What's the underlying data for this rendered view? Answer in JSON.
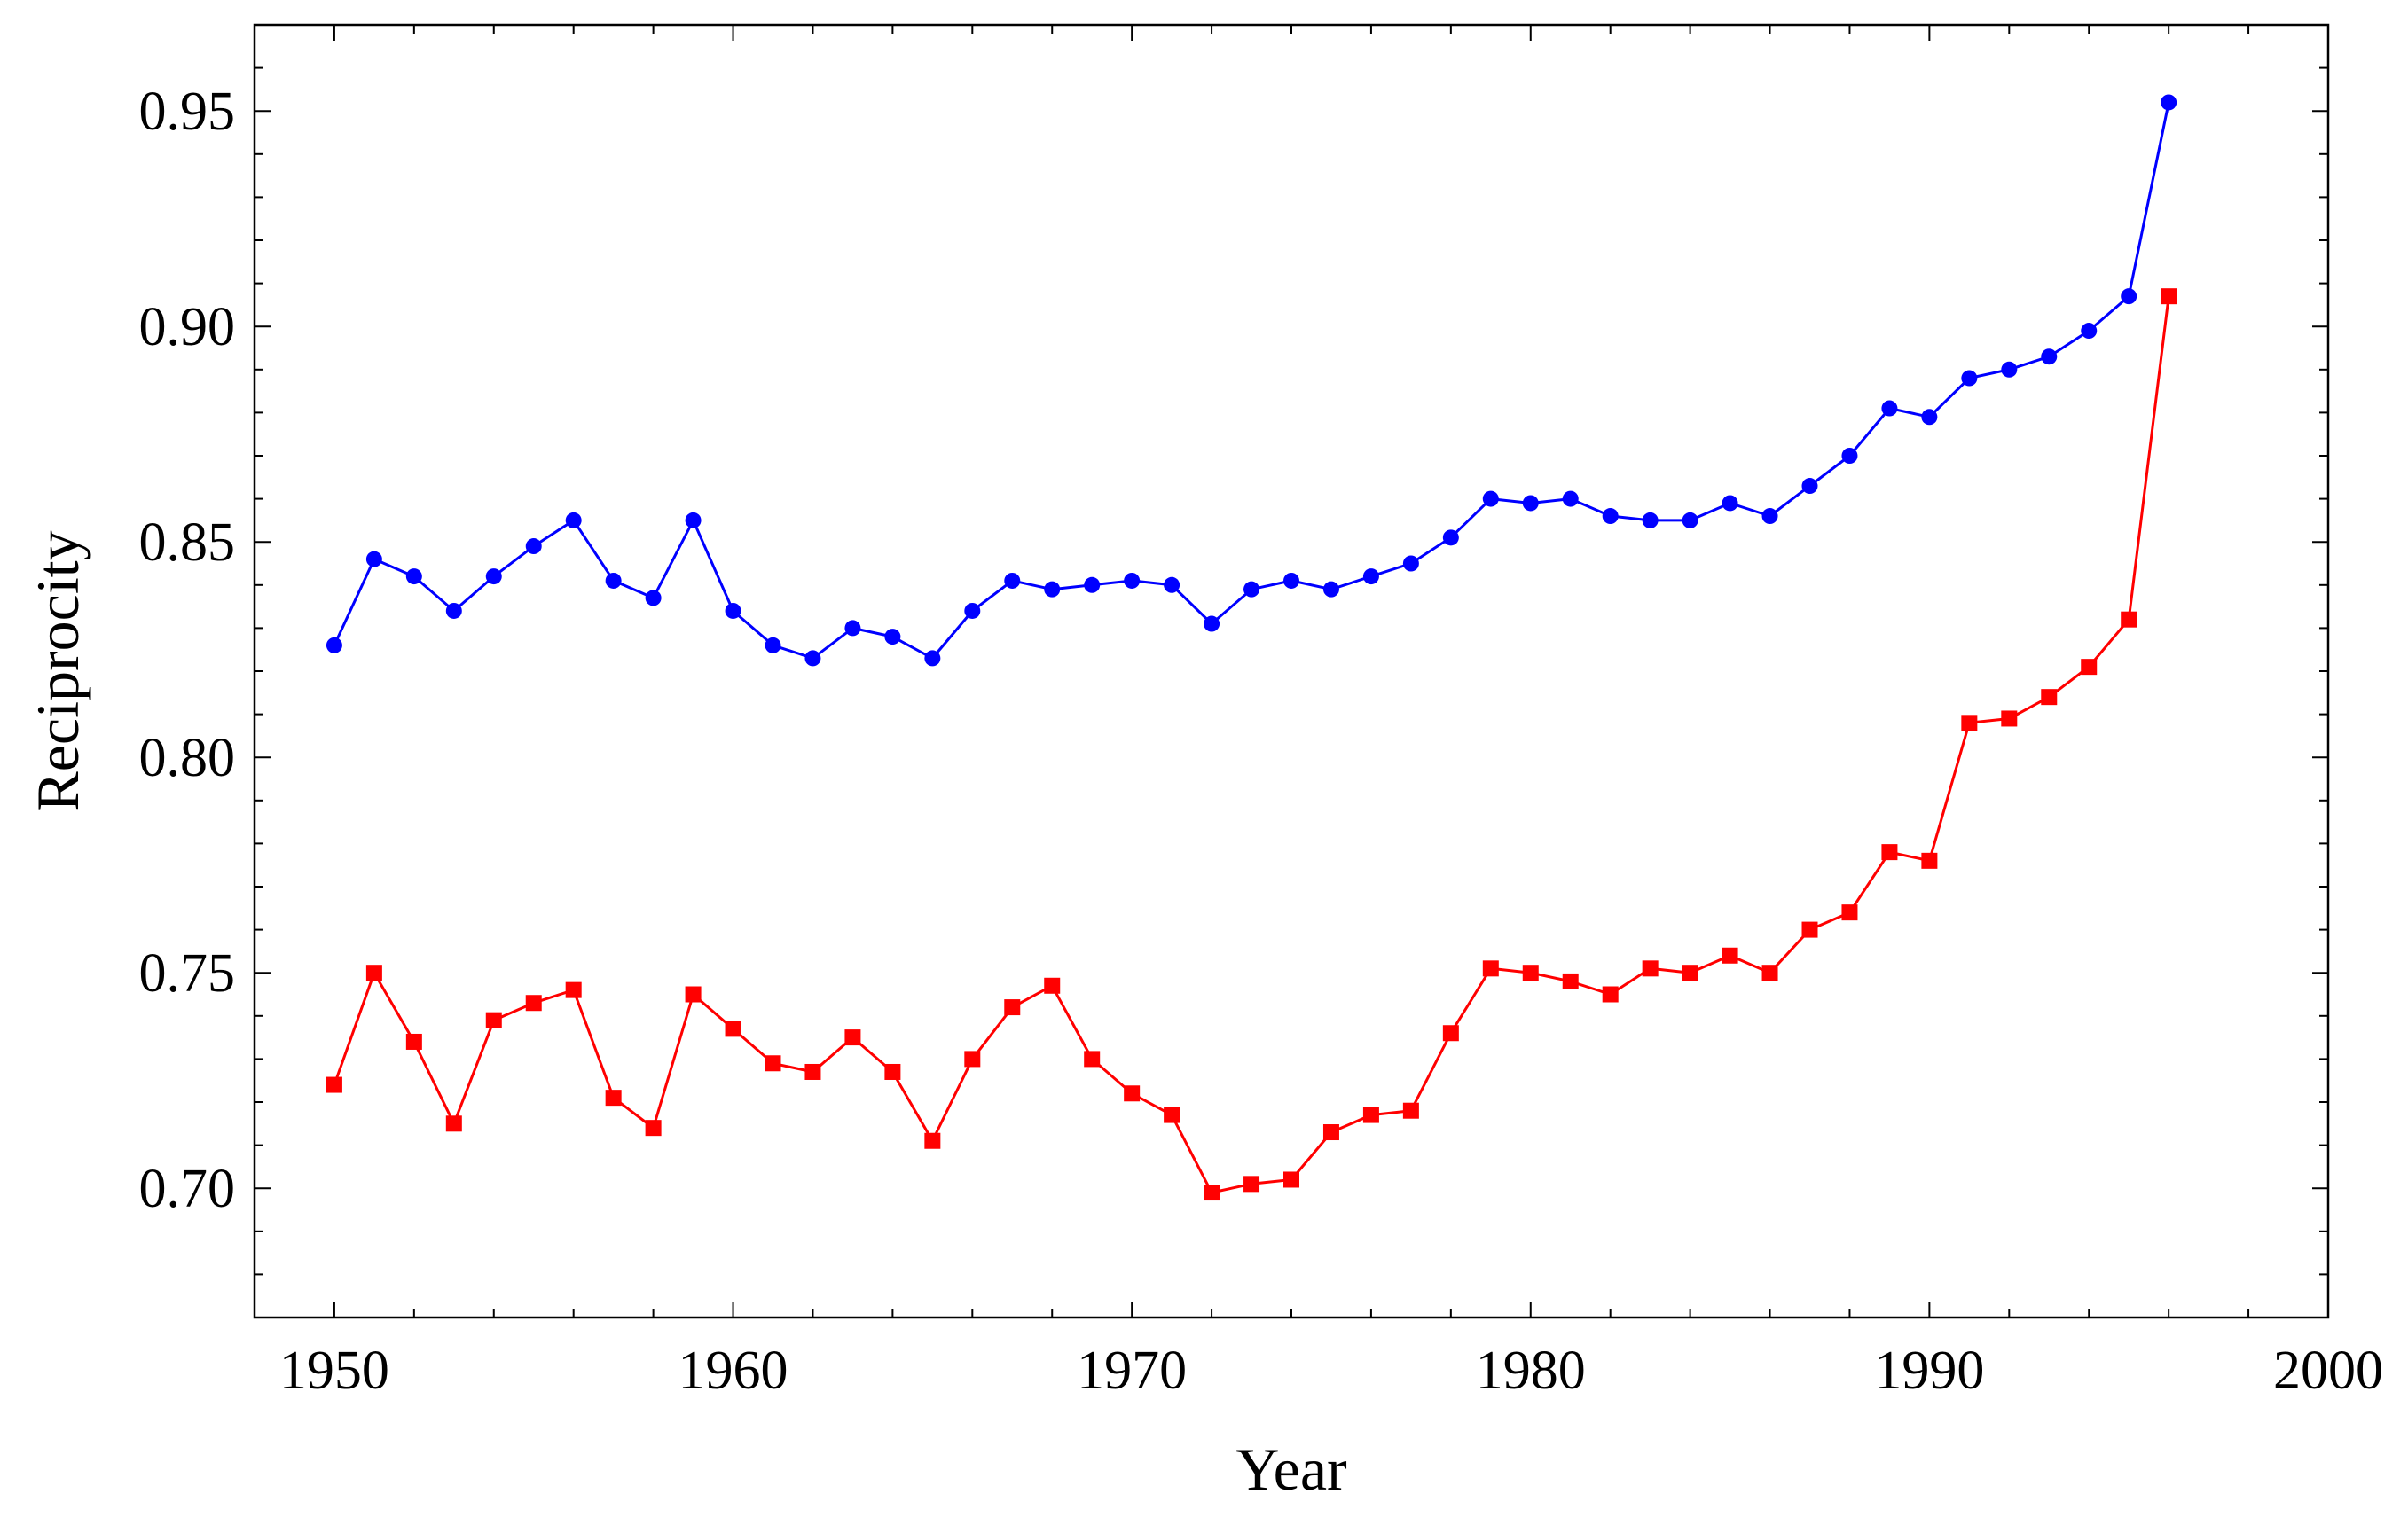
{
  "chart_data": {
    "type": "line",
    "title": "",
    "xlabel": "Year",
    "ylabel": "Reciprocity",
    "xlim": [
      1948,
      2000
    ],
    "ylim": [
      0.67,
      0.97
    ],
    "x_ticks": [
      1950,
      1960,
      1970,
      1980,
      1990,
      2000
    ],
    "x_tick_labels": [
      "1950",
      "1960",
      "1970",
      "1980",
      "1990",
      "2000"
    ],
    "y_ticks": [
      0.7,
      0.75,
      0.8,
      0.85,
      0.9,
      0.95
    ],
    "y_tick_labels": [
      "0.70",
      "0.75",
      "0.80",
      "0.85",
      "0.90",
      "0.95"
    ],
    "grid": false,
    "x": [
      1950,
      1951,
      1952,
      1953,
      1954,
      1955,
      1956,
      1957,
      1958,
      1959,
      1960,
      1961,
      1962,
      1963,
      1964,
      1965,
      1966,
      1967,
      1968,
      1969,
      1970,
      1971,
      1972,
      1973,
      1974,
      1975,
      1976,
      1977,
      1978,
      1979,
      1980,
      1981,
      1982,
      1983,
      1984,
      1985,
      1986,
      1987,
      1988,
      1989,
      1990,
      1991,
      1992,
      1993,
      1994,
      1995,
      1996
    ],
    "series": [
      {
        "color": "#0000ff",
        "marker": "circle",
        "values": [
          0.826,
          0.846,
          0.842,
          0.834,
          0.842,
          0.849,
          0.855,
          0.841,
          0.837,
          0.855,
          0.834,
          0.826,
          0.823,
          0.83,
          0.828,
          0.823,
          0.834,
          0.841,
          0.839,
          0.84,
          0.841,
          0.84,
          0.831,
          0.839,
          0.841,
          0.839,
          0.842,
          0.845,
          0.851,
          0.86,
          0.859,
          0.86,
          0.856,
          0.855,
          0.855,
          0.859,
          0.856,
          0.863,
          0.87,
          0.881,
          0.879,
          0.888,
          0.89,
          0.893,
          0.899,
          0.907,
          0.952
        ]
      },
      {
        "color": "#ff0000",
        "marker": "square",
        "values": [
          0.724,
          0.75,
          0.734,
          0.715,
          0.739,
          0.743,
          0.746,
          0.721,
          0.714,
          0.745,
          0.737,
          0.729,
          0.727,
          0.735,
          0.727,
          0.711,
          0.73,
          0.742,
          0.747,
          0.73,
          0.722,
          0.717,
          0.699,
          0.701,
          0.702,
          0.713,
          0.717,
          0.718,
          0.736,
          0.751,
          0.75,
          0.748,
          0.745,
          0.751,
          0.75,
          0.754,
          0.75,
          0.76,
          0.764,
          0.778,
          0.776,
          0.808,
          0.809,
          0.814,
          0.821,
          0.832,
          0.907
        ]
      }
    ]
  }
}
